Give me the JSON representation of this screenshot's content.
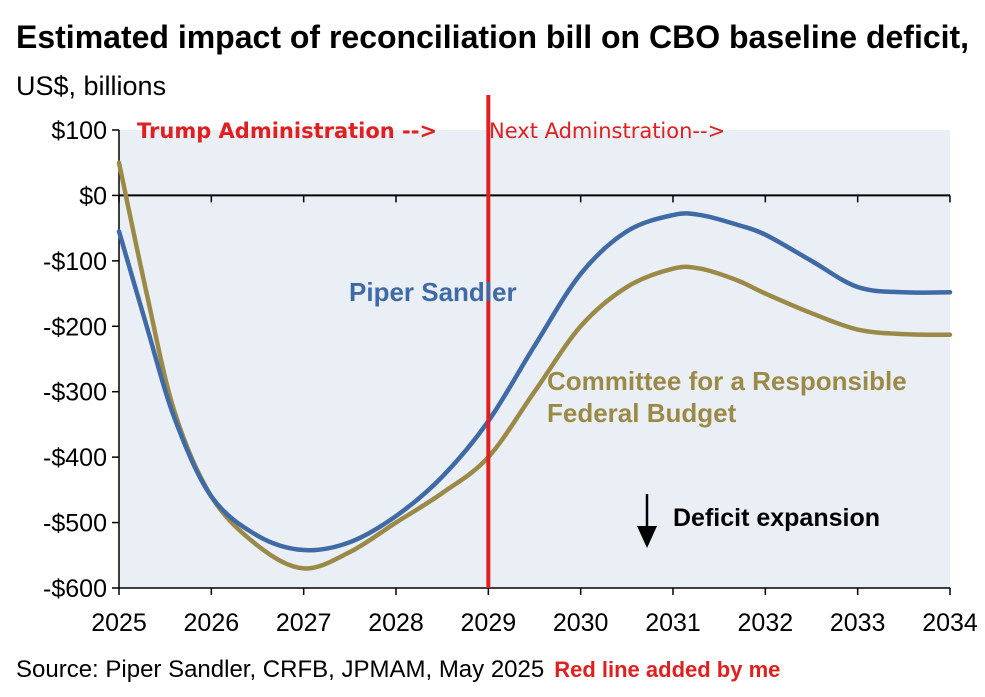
{
  "title": {
    "main": "Estimated impact of reconciliation bill on CBO baseline deficit,",
    "unit": " US$, billions"
  },
  "source": "Source: Piper Sandler, CRFB, JPMAM, May 2025",
  "source_note": "Red line added by me",
  "annotations": {
    "left_era": "Trump Administration -->",
    "right_era": "Next Adminstration-->",
    "deficit_expansion": "Deficit expansion",
    "divider_color": "#e02020",
    "divider_x": 2029
  },
  "chart_data": {
    "type": "line",
    "title": "Estimated impact of reconciliation bill on CBO baseline deficit, US$, billions",
    "xlabel": "",
    "ylabel": "",
    "xlim": [
      2025,
      2034
    ],
    "ylim": [
      -600,
      100
    ],
    "x_ticks": [
      2025,
      2026,
      2027,
      2028,
      2029,
      2030,
      2031,
      2032,
      2033,
      2034
    ],
    "y_ticks": [
      100,
      0,
      -100,
      -200,
      -300,
      -400,
      -500,
      -600
    ],
    "y_tick_labels": [
      "$100",
      "$0",
      "-$100",
      "-$200",
      "-$300",
      "-$400",
      "-$500",
      "-$600"
    ],
    "grid": false,
    "background": "#eaeff5",
    "series": [
      {
        "name": "Piper Sandler",
        "color": "#3f6aa6",
        "x": [
          2025,
          2025.3,
          2025.6,
          2026,
          2026.5,
          2027,
          2027.5,
          2028,
          2028.5,
          2029,
          2029.5,
          2030,
          2030.5,
          2031,
          2031.3,
          2031.7,
          2032,
          2032.5,
          2033,
          2033.5,
          2034
        ],
        "y": [
          -55,
          -200,
          -340,
          -460,
          -520,
          -542,
          -530,
          -490,
          -430,
          -345,
          -230,
          -120,
          -55,
          -30,
          -30,
          -45,
          -60,
          -100,
          -140,
          -148,
          -148
        ]
      },
      {
        "name": "Committee for a Responsible Federal Budget",
        "color": "#9b8a47",
        "x": [
          2025,
          2025.3,
          2025.6,
          2026,
          2026.5,
          2027,
          2027.5,
          2028,
          2028.5,
          2029,
          2029.5,
          2030,
          2030.5,
          2031,
          2031.3,
          2031.7,
          2032,
          2032.5,
          2033,
          2033.5,
          2034
        ],
        "y": [
          50,
          -150,
          -330,
          -460,
          -535,
          -570,
          -545,
          -500,
          -455,
          -400,
          -300,
          -200,
          -140,
          -112,
          -112,
          -130,
          -150,
          -180,
          -205,
          -212,
          -213
        ]
      }
    ]
  }
}
